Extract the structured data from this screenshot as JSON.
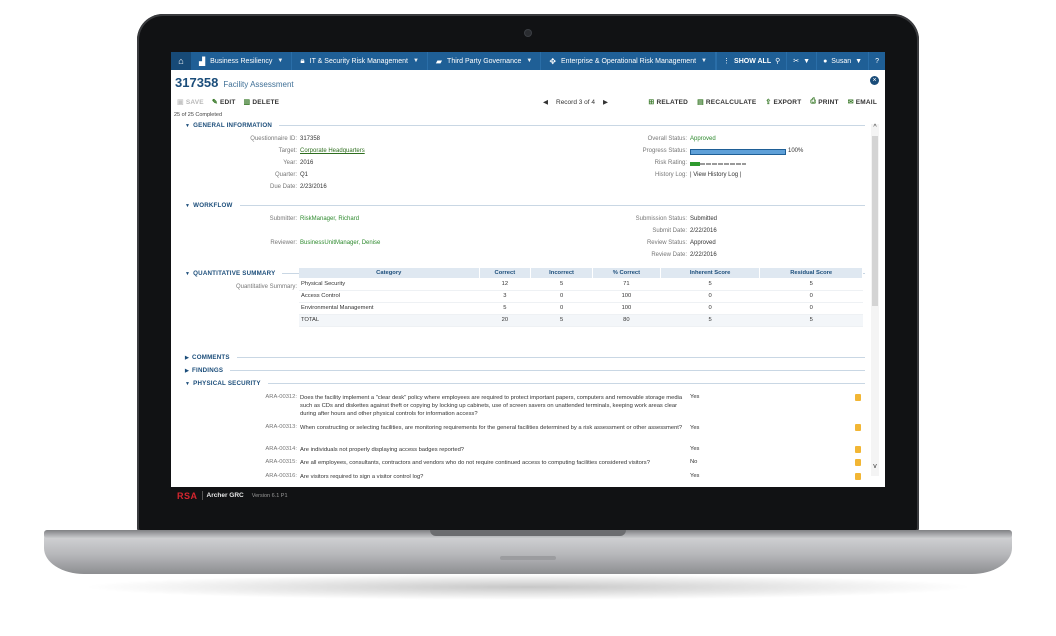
{
  "nav": {
    "items": [
      {
        "label": "Business Resiliency",
        "icon": "factory-icon"
      },
      {
        "label": "IT & Security Risk Management",
        "icon": "lock-icon"
      },
      {
        "label": "Third Party Governance",
        "icon": "truck-icon"
      },
      {
        "label": "Enterprise & Operational Risk Management",
        "icon": "compass-icon"
      }
    ],
    "show_all": "SHOW ALL",
    "user": "Susan"
  },
  "record": {
    "id": "317358",
    "name": "Facility Assessment"
  },
  "toolbar": {
    "save": "SAVE",
    "edit": "EDIT",
    "delete": "DELETE",
    "record_nav": "Record 3 of 4",
    "related": "RELATED",
    "recalculate": "RECALCULATE",
    "export": "EXPORT",
    "print": "PRINT",
    "email": "EMAIL"
  },
  "completed": "25 of 25 Completed",
  "general": {
    "title": "GENERAL INFORMATION",
    "questionnaire_id_label": "Questionnaire ID:",
    "questionnaire_id": "317358",
    "target_label": "Target:",
    "target": "Corporate Headquarters",
    "year_label": "Year:",
    "year": "2016",
    "quarter_label": "Quarter:",
    "quarter": "Q1",
    "due_date_label": "Due Date:",
    "due_date": "2/23/2016",
    "overall_status_label": "Overall Status:",
    "overall_status": "Approved",
    "progress_status_label": "Progress Status:",
    "progress_status": "100%",
    "progress_fraction": 1.0,
    "risk_rating_label": "Risk Rating:",
    "history_log_label": "History Log:",
    "history_log": "| View History Log |"
  },
  "workflow": {
    "title": "WORKFLOW",
    "submitter_label": "Submitter:",
    "submitter": "RiskManager, Richard",
    "reviewer_label": "Reviewer:",
    "reviewer": "BusinessUnitManager, Denise",
    "submission_status_label": "Submission Status:",
    "submission_status": "Submitted",
    "submit_date_label": "Submit Date:",
    "submit_date": "2/22/2016",
    "review_status_label": "Review Status:",
    "review_status": "Approved",
    "review_date_label": "Review Date:",
    "review_date": "2/22/2016"
  },
  "quant": {
    "title": "QUANTITATIVE SUMMARY",
    "label": "Quantitative Summary:",
    "headers": [
      "Category",
      "Correct",
      "Incorrect",
      "% Correct",
      "Inherent Score",
      "Residual Score"
    ],
    "rows": [
      {
        "category": "Physical Security",
        "correct": "12",
        "incorrect": "5",
        "pct": "71",
        "inherent": "5",
        "residual": "5"
      },
      {
        "category": "Access Control",
        "correct": "3",
        "incorrect": "0",
        "pct": "100",
        "inherent": "0",
        "residual": "0"
      },
      {
        "category": "Environmental Management",
        "correct": "5",
        "incorrect": "0",
        "pct": "100",
        "inherent": "0",
        "residual": "0"
      },
      {
        "category": "TOTAL",
        "correct": "20",
        "incorrect": "5",
        "pct": "80",
        "inherent": "5",
        "residual": "5"
      }
    ]
  },
  "comments_title": "COMMENTS",
  "findings_title": "FINDINGS",
  "physical": {
    "title": "PHYSICAL SECURITY",
    "questions": [
      {
        "id": "ARA-00312:",
        "text": "Does the facility implement a \"clear desk\" policy where employees are required to protect important papers, computers and removable storage media such as CDs and diskettes against theft or copying by locking up cabinets, use of screen savers on unattended terminals, keeping work areas clear during after hours and other physical controls for information access?",
        "answer": "Yes"
      },
      {
        "id": "ARA-00313:",
        "text": "When constructing or selecting facilities, are monitoring requirements for the general facilities determined by a risk assessment or other assessment?",
        "answer": "Yes"
      },
      {
        "id": "ARA-00314:",
        "text": "Are individuals not properly displaying access badges reported?",
        "answer": "Yes"
      },
      {
        "id": "ARA-00315:",
        "text": "Are all employees, consultants, contractors and vendors who do not require continued access to computing facilities considered visitors?",
        "answer": "No"
      },
      {
        "id": "ARA-00316:",
        "text": "Are visitors required to sign a visitor control log?",
        "answer": "Yes"
      }
    ]
  },
  "footer": {
    "brand": "RSA",
    "product": "Archer GRC",
    "version": "Version 6.1 P1"
  }
}
